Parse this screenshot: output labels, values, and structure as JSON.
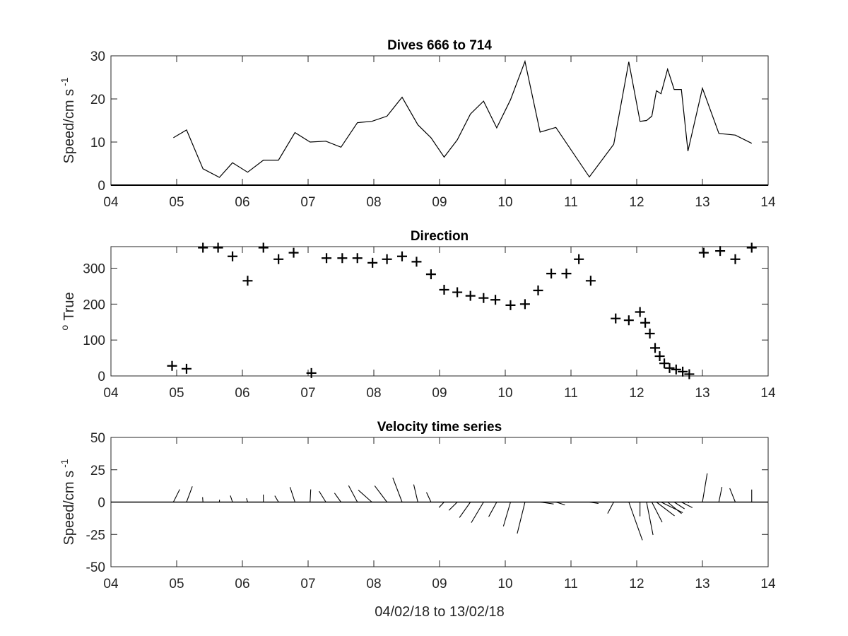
{
  "chart_data": [
    {
      "type": "line",
      "title": "Dives 666 to 714",
      "ylabel": "Speed/cm s",
      "ylabel_sup": "-1",
      "xlim": [
        4,
        14
      ],
      "ylim": [
        0,
        30
      ],
      "xticks": [
        "04",
        "05",
        "06",
        "07",
        "08",
        "09",
        "10",
        "11",
        "12",
        "13",
        "14"
      ],
      "yticks": [
        "0",
        "10",
        "20",
        "30"
      ],
      "x": [
        4.95,
        5.15,
        5.4,
        5.65,
        5.85,
        6.08,
        6.32,
        6.55,
        6.8,
        7.03,
        7.27,
        7.5,
        7.75,
        7.97,
        8.2,
        8.43,
        8.67,
        8.87,
        9.07,
        9.27,
        9.47,
        9.67,
        9.87,
        10.08,
        10.3,
        10.53,
        10.77,
        11.28,
        11.65,
        11.88,
        12.05,
        12.15,
        12.23,
        12.3,
        12.37,
        12.47,
        12.57,
        12.68,
        12.78,
        13.0,
        13.25,
        13.5,
        13.75
      ],
      "y": [
        11,
        12.8,
        3.8,
        1.8,
        5.2,
        3,
        5.8,
        5.8,
        12.2,
        10,
        10.2,
        8.8,
        14.5,
        14.8,
        16,
        20.4,
        14,
        11,
        6.5,
        10.5,
        16.5,
        19.5,
        13.3,
        19.8,
        28.7,
        12.3,
        13.4,
        1.9,
        9.5,
        28.6,
        14.8,
        15,
        16,
        21.9,
        21.2,
        26.9,
        22.2,
        22.2,
        7.9,
        22.5,
        12,
        11.6,
        9.7
      ]
    },
    {
      "type": "scatter",
      "title": "Direction",
      "ylabel": "True",
      "ylabel_sup": "o",
      "xlim": [
        4,
        14
      ],
      "ylim": [
        0,
        360
      ],
      "xticks": [
        "04",
        "05",
        "06",
        "07",
        "08",
        "09",
        "10",
        "11",
        "12",
        "13",
        "14"
      ],
      "yticks": [
        "0",
        "100",
        "200",
        "300"
      ],
      "marker": "+",
      "x": [
        4.93,
        5.15,
        5.4,
        5.63,
        5.85,
        6.08,
        6.32,
        6.55,
        6.78,
        7.05,
        7.28,
        7.52,
        7.75,
        7.98,
        8.2,
        8.43,
        8.65,
        8.87,
        9.07,
        9.27,
        9.47,
        9.67,
        9.85,
        10.08,
        10.3,
        10.5,
        10.7,
        10.93,
        11.12,
        11.3,
        11.68,
        11.88,
        12.05,
        12.13,
        12.2,
        12.28,
        12.35,
        12.42,
        12.5,
        12.6,
        12.7,
        12.8,
        13.02,
        13.27,
        13.5,
        13.75
      ],
      "y": [
        28,
        20,
        357,
        357,
        333,
        265,
        357,
        325,
        343,
        8,
        328,
        328,
        328,
        315,
        325,
        333,
        318,
        283,
        240,
        233,
        223,
        217,
        212,
        197,
        200,
        238,
        285,
        285,
        325,
        265,
        160,
        155,
        178,
        148,
        118,
        78,
        55,
        35,
        22,
        18,
        12,
        5,
        343,
        348,
        325,
        357
      ]
    },
    {
      "type": "quiver",
      "title": "Velocity time series",
      "ylabel": "Speed/cm s",
      "ylabel_sup": "-1",
      "xlabel": "04/02/18 to 13/02/18",
      "xlim": [
        4,
        14
      ],
      "ylim": [
        -50,
        50
      ],
      "xticks": [
        "04",
        "05",
        "06",
        "07",
        "08",
        "09",
        "10",
        "11",
        "12",
        "13",
        "14"
      ],
      "yticks": [
        "-50",
        "-25",
        "0",
        "25",
        "50"
      ],
      "x": [
        4.95,
        5.15,
        5.4,
        5.65,
        5.85,
        6.08,
        6.32,
        6.55,
        6.8,
        7.03,
        7.27,
        7.5,
        7.75,
        7.97,
        8.2,
        8.43,
        8.67,
        8.87,
        9.07,
        9.27,
        9.47,
        9.67,
        9.87,
        10.08,
        10.3,
        10.53,
        10.77,
        11.28,
        11.65,
        11.88,
        12.05,
        12.15,
        12.23,
        12.3,
        12.37,
        12.47,
        12.57,
        12.68,
        12.78,
        13.0,
        13.25,
        13.5,
        13.75
      ],
      "u": [
        4.9,
        4.5,
        -0.3,
        0.1,
        -1.7,
        -0.9,
        -0.1,
        -2.9,
        -3.8,
        0.5,
        -5.2,
        -5.0,
        -6.8,
        -10.5,
        -9.5,
        -7.2,
        -3.2,
        -3.5,
        -4.0,
        -6.5,
        -8.5,
        -9.5,
        -6.2,
        -5.5,
        -6.0,
        10.5,
        7.0,
        7.0,
        -4.7,
        10.5,
        0,
        5.0,
        8.0,
        14.0,
        16.8,
        10.8,
        8.0,
        8.5,
        0.7,
        3.7,
        2.4,
        -4.3,
        0
      ],
      "v": [
        9.8,
        12.1,
        3.8,
        1.8,
        5.0,
        2.9,
        5.8,
        4.9,
        11.6,
        9.8,
        8.4,
        7.0,
        12.8,
        9.3,
        12.6,
        18.9,
        13.6,
        7.5,
        -4.2,
        -6.4,
        -12.0,
        -15.9,
        -11.3,
        -18.7,
        -24.3,
        -1.5,
        -2.2,
        -1.1,
        -8.8,
        -29.5,
        -11.0,
        -25.4,
        -15.6,
        -10.6,
        -8.2,
        -8.9,
        -5.2,
        -4.3,
        -0.7,
        22.2,
        11.7,
        10.7,
        9.7
      ]
    }
  ]
}
